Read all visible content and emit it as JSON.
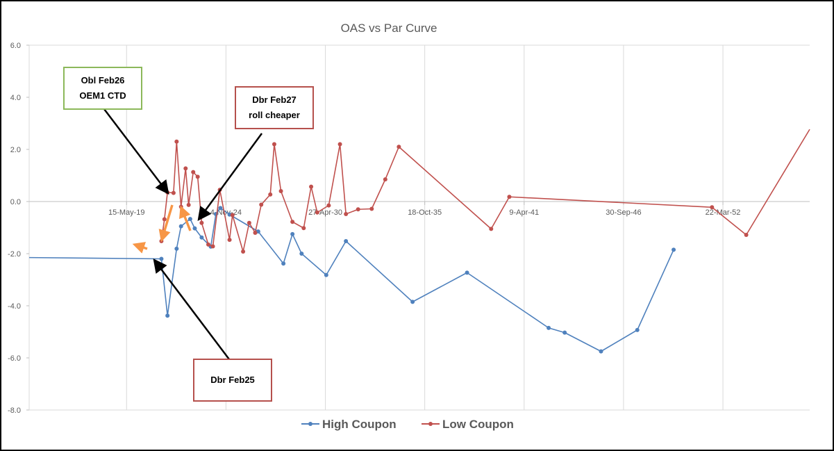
{
  "chart_data": {
    "type": "line",
    "title": "OAS vs Par Curve",
    "xlabel": "",
    "ylabel": "",
    "x_axis": {
      "min_date": "2014-01-01",
      "max_date": "2057-01-01",
      "tick_dates": [
        "2019-05-15",
        "2024-11-04",
        "2030-04-27",
        "2035-10-18",
        "2041-04-09",
        "2046-09-30",
        "2052-03-22"
      ],
      "tick_labels": [
        "15-May-19",
        "4-Nov-24",
        "27-Apr-30",
        "18-Oct-35",
        "9-Apr-41",
        "30-Sep-46",
        "22-Mar-52"
      ]
    },
    "y_axis": {
      "ylim": [
        -8.0,
        6.0
      ],
      "ticks": [
        -8.0,
        -6.0,
        -4.0,
        -2.0,
        0.0,
        2.0,
        4.0,
        6.0
      ],
      "tick_labels": [
        "-8.0",
        "-6.0",
        "-4.0",
        "-2.0",
        "0.0",
        "2.0",
        "4.0",
        "6.0"
      ]
    },
    "grid": "vertical",
    "legend": "bottom",
    "series": [
      {
        "name": "High Coupon",
        "color": "#4f81bd",
        "points": [
          [
            "2014-01-01",
            -2.15
          ],
          [
            "2021-04-15",
            -2.2
          ],
          [
            "2021-08-15",
            -4.38
          ],
          [
            "2022-02-15",
            -1.81
          ],
          [
            "2022-05-15",
            -0.95
          ],
          [
            "2022-11-15",
            -0.67
          ],
          [
            "2023-02-15",
            -1.03
          ],
          [
            "2023-07-04",
            -1.38
          ],
          [
            "2024-01-04",
            -1.73
          ],
          [
            "2024-04-15",
            -0.48
          ],
          [
            "2024-07-15",
            -0.25
          ],
          [
            "2025-01-15",
            -0.5
          ],
          [
            "2026-08-15",
            -1.15
          ],
          [
            "2028-01-04",
            -2.38
          ],
          [
            "2028-07-04",
            -1.25
          ],
          [
            "2029-01-04",
            -2.0
          ],
          [
            "2030-05-15",
            -2.82
          ],
          [
            "2031-06-15",
            -1.52
          ],
          [
            "2035-02-15",
            -3.85
          ],
          [
            "2038-02-15",
            -2.73
          ],
          [
            "2042-08-15",
            -4.85
          ],
          [
            "2043-07-04",
            -5.03
          ],
          [
            "2045-07-04",
            -5.75
          ],
          [
            "2047-07-04",
            -4.93
          ],
          [
            "2049-07-04",
            -1.85
          ]
        ]
      },
      {
        "name": "Low Coupon",
        "color": "#c0504d",
        "points": [
          [
            "2021-04-15",
            -1.52
          ],
          [
            "2021-06-15",
            -0.68
          ],
          [
            "2021-08-15",
            0.35
          ],
          [
            "2021-12-15",
            0.33
          ],
          [
            "2022-02-15",
            2.3
          ],
          [
            "2022-05-15",
            -0.2
          ],
          [
            "2022-08-15",
            1.27
          ],
          [
            "2022-10-15",
            -0.13
          ],
          [
            "2023-01-15",
            1.13
          ],
          [
            "2023-04-15",
            0.95
          ],
          [
            "2023-07-04",
            -0.82
          ],
          [
            "2023-11-15",
            -1.65
          ],
          [
            "2024-02-15",
            -1.72
          ],
          [
            "2024-07-04",
            0.45
          ],
          [
            "2025-01-15",
            -1.47
          ],
          [
            "2025-03-15",
            -0.52
          ],
          [
            "2025-10-15",
            -1.92
          ],
          [
            "2026-02-15",
            -0.82
          ],
          [
            "2026-06-15",
            -1.2
          ],
          [
            "2026-10-15",
            -0.12
          ],
          [
            "2027-04-15",
            0.27
          ],
          [
            "2027-07-04",
            2.2
          ],
          [
            "2027-11-15",
            0.4
          ],
          [
            "2028-07-04",
            -0.78
          ],
          [
            "2029-02-15",
            -1.02
          ],
          [
            "2029-07-15",
            0.57
          ],
          [
            "2029-11-15",
            -0.42
          ],
          [
            "2030-07-04",
            -0.15
          ],
          [
            "2031-02-15",
            2.2
          ],
          [
            "2031-06-15",
            -0.48
          ],
          [
            "2032-02-15",
            -0.3
          ],
          [
            "2032-11-15",
            -0.28
          ],
          [
            "2033-08-15",
            0.85
          ],
          [
            "2034-05-15",
            2.1
          ],
          [
            "2039-06-15",
            -1.05
          ],
          [
            "2040-06-15",
            0.18
          ],
          [
            "2051-08-15",
            -0.22
          ],
          [
            "2053-07-04",
            -1.28
          ],
          [
            "2057-01-01",
            2.77
          ]
        ]
      }
    ],
    "annotations": [
      {
        "text": "Obl Feb26\nOEM1 CTD"
      },
      {
        "text": "Dbr Feb27\nroll cheaper"
      },
      {
        "text": "Dbr Feb25"
      }
    ]
  }
}
